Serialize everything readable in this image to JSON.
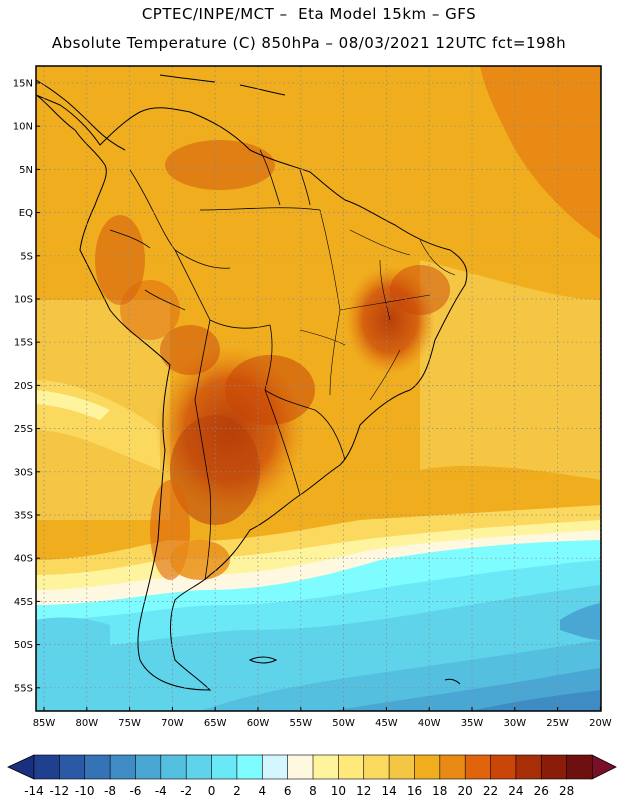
{
  "header": {
    "line1": "CPTEC/INPE/MCT –  Eta Model 15km – GFS",
    "line2": "Absolute Temperature (C) 850hPa – 08/03/2021 12UTC fct=198h"
  },
  "map": {
    "lat_labels": [
      "15N",
      "10N",
      "5N",
      "EQ",
      "5S",
      "10S",
      "15S",
      "20S",
      "25S",
      "30S",
      "35S",
      "40S",
      "45S",
      "50S",
      "55S"
    ],
    "lon_labels": [
      "85W",
      "80W",
      "75W",
      "70W",
      "65W",
      "60W",
      "55W",
      "50W",
      "45W",
      "40W",
      "35W",
      "30W",
      "25W",
      "20W"
    ],
    "grid": "dotted"
  },
  "colorbar": {
    "labels": [
      "-14",
      "-12",
      "-10",
      "-8",
      "-6",
      "-4",
      "-2",
      "0",
      "2",
      "4",
      "6",
      "8",
      "10",
      "12",
      "14",
      "16",
      "18",
      "20",
      "22",
      "24",
      "26",
      "28"
    ],
    "colors": [
      "#1f3f8f",
      "#2a5aa6",
      "#3473b6",
      "#3f8cc4",
      "#4aa6d2",
      "#55bfe0",
      "#5fd3ea",
      "#6be8f5",
      "#7ffcff",
      "#d4f6ff",
      "#fff8e1",
      "#fff49e",
      "#ffe97a",
      "#fbd85e",
      "#f5c643",
      "#f0ae1e",
      "#e88a14",
      "#e0640c",
      "#c94608",
      "#a82e07",
      "#8a1d0a",
      "#6e1010"
    ],
    "under_color": "#1a2f80",
    "over_color": "#7a0f28"
  }
}
